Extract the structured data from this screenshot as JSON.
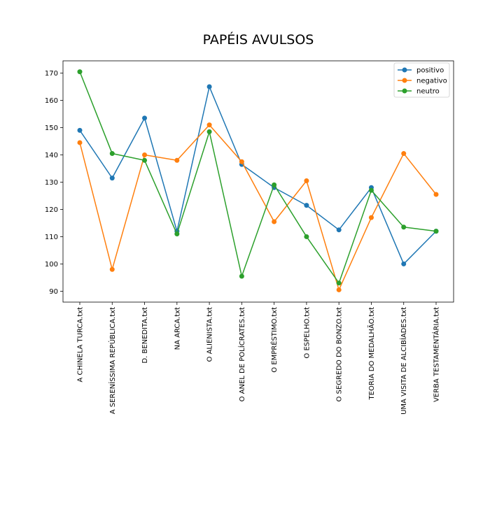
{
  "chart_data": {
    "type": "line",
    "title": "PAPÉIS AVULSOS",
    "xlabel": "",
    "ylabel": "",
    "categories": [
      "A CHINELA TURCA.txt",
      "A SERENÍSSIMA REPÚBLICA.txt",
      "D. BENEDITA.txt",
      "NA ARCA.txt",
      "O ALIENISTA.txt",
      "O ANEL DE POLÍCRATES.txt",
      "O EMPRÉSTIMO.txt",
      "O ESPELHO.txt",
      "O SEGREDO DO BONZO.txt",
      "TEORIA DO MEDALHÃO.txt",
      "UMA VISITA DE ALCIBÍADES.txt",
      "VERBA TESTAMENTÁRIA.txt"
    ],
    "series": [
      {
        "name": "positivo",
        "color": "#1f77b4",
        "values": [
          149,
          131.5,
          153.5,
          112,
          165,
          136.5,
          128,
          121.5,
          112.5,
          128,
          100,
          112
        ]
      },
      {
        "name": "negativo",
        "color": "#ff7f0e",
        "values": [
          144.5,
          98,
          140,
          138,
          151,
          137.5,
          115.5,
          130.5,
          90.5,
          117,
          140.5,
          125.5
        ]
      },
      {
        "name": "neutro",
        "color": "#2ca02c",
        "values": [
          170.5,
          140.5,
          138,
          111,
          148.5,
          95.5,
          129,
          110,
          93,
          127,
          113.5,
          112
        ]
      }
    ],
    "ylim": [
      86,
      174.5
    ],
    "yticks": [
      90,
      100,
      110,
      120,
      130,
      140,
      150,
      160,
      170
    ],
    "grid": false,
    "legend_position": "top-right"
  }
}
